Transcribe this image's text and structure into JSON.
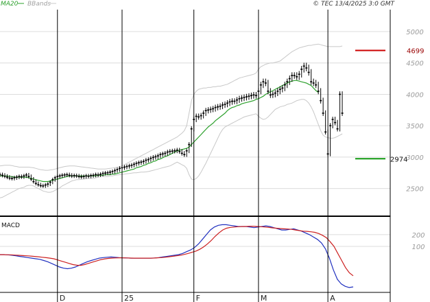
{
  "header": {
    "ma_label": "MA20",
    "bb_label": "BBands",
    "copyright": "© TEC 13/4/2025 3:0 GMT"
  },
  "colors": {
    "background": "#ffffff",
    "grid": "#dcdcdc",
    "axis_line": "#000000",
    "candles": "#000000",
    "ma20": "#2ca02c",
    "bbands": "#c8c8c8",
    "macd": "#1f2fbf",
    "signal": "#cc1f1f",
    "resistance": "#cc0000",
    "support": "#119911"
  },
  "chart_data": [
    {
      "type": "candlestick",
      "title": "",
      "y_ticks": [
        2500,
        3000,
        3500,
        4000,
        4500,
        5000
      ],
      "y_tick_labels": [
        "2500",
        "3000",
        "3500",
        "4000",
        "4500",
        "5000"
      ],
      "ylim": [
        2080,
        5350
      ],
      "x_count": 150,
      "month_labels": [
        {
          "label": "D",
          "index": 24
        },
        {
          "label": "25",
          "index": 51
        },
        {
          "label": "F",
          "index": 81
        },
        {
          "label": "M",
          "index": 108
        },
        {
          "label": "A",
          "index": 137
        }
      ],
      "close": [
        2720,
        2710,
        2695,
        2680,
        2665,
        2660,
        2670,
        2680,
        2690,
        2685,
        2700,
        2715,
        2690,
        2650,
        2610,
        2580,
        2560,
        2545,
        2540,
        2555,
        2570,
        2600,
        2640,
        2670,
        2690,
        2700,
        2710,
        2715,
        2720,
        2710,
        2700,
        2705,
        2700,
        2690,
        2685,
        2690,
        2700,
        2695,
        2705,
        2710,
        2720,
        2715,
        2725,
        2740,
        2745,
        2750,
        2760,
        2770,
        2785,
        2800,
        2820,
        2830,
        2840,
        2850,
        2860,
        2870,
        2885,
        2900,
        2910,
        2920,
        2930,
        2950,
        2960,
        2980,
        2995,
        3005,
        3020,
        3040,
        3050,
        3060,
        3080,
        3090,
        3095,
        3100,
        3110,
        3090,
        3060,
        3040,
        3100,
        3200,
        3450,
        3600,
        3650,
        3640,
        3660,
        3700,
        3740,
        3750,
        3760,
        3770,
        3790,
        3800,
        3810,
        3830,
        3840,
        3860,
        3880,
        3890,
        3890,
        3910,
        3930,
        3940,
        3950,
        3960,
        3970,
        3980,
        3990,
        3980,
        4050,
        4150,
        4200,
        4180,
        4050,
        3990,
        4000,
        4020,
        4050,
        4080,
        4100,
        4150,
        4200,
        4250,
        4300,
        4300,
        4280,
        4320,
        4400,
        4450,
        4420,
        4350,
        4200,
        4180,
        4150,
        4050,
        3900,
        3700,
        3400,
        3050,
        3500,
        3600,
        3550,
        3450,
        4000,
        3700
      ],
      "series": [
        {
          "name": "MA20",
          "values": [
            2700,
            2700,
            2700,
            2700,
            2690,
            2690,
            2680,
            2680,
            2680,
            2680,
            2680,
            2680,
            2670,
            2660,
            2650,
            2640,
            2630,
            2620,
            2610,
            2610,
            2610,
            2620,
            2630,
            2640,
            2650,
            2660,
            2670,
            2680,
            2690,
            2700,
            2700,
            2700,
            2700,
            2700,
            2700,
            2700,
            2700,
            2700,
            2700,
            2700,
            2700,
            2710,
            2710,
            2710,
            2720,
            2720,
            2720,
            2730,
            2730,
            2740,
            2750,
            2760,
            2770,
            2780,
            2790,
            2800,
            2810,
            2830,
            2840,
            2850,
            2870,
            2880,
            2900,
            2910,
            2930,
            2940,
            2960,
            2970,
            2990,
            3010,
            3020,
            3040,
            3060,
            3080,
            3100,
            3110,
            3120,
            3130,
            3140,
            3160,
            3200,
            3240,
            3280,
            3320,
            3360,
            3400,
            3440,
            3480,
            3510,
            3540,
            3580,
            3610,
            3640,
            3670,
            3700,
            3740,
            3770,
            3790,
            3800,
            3820,
            3830,
            3850,
            3860,
            3870,
            3880,
            3890,
            3900,
            3920,
            3930,
            3950,
            3970,
            4000,
            4020,
            4040,
            4060,
            4080,
            4100,
            4120,
            4140,
            4160,
            4180,
            4200,
            4210,
            4220,
            4220,
            4210,
            4200,
            4190,
            4180,
            4160,
            4140,
            4100,
            4060,
            4030
          ]
        },
        {
          "name": "BBands upper",
          "values": [
            2860,
            2865,
            2870,
            2870,
            2870,
            2865,
            2855,
            2850,
            2840,
            2840,
            2840,
            2840,
            2840,
            2835,
            2830,
            2820,
            2810,
            2800,
            2795,
            2790,
            2790,
            2795,
            2800,
            2810,
            2820,
            2830,
            2840,
            2850,
            2855,
            2860,
            2860,
            2860,
            2855,
            2850,
            2845,
            2840,
            2835,
            2830,
            2825,
            2820,
            2815,
            2810,
            2810,
            2810,
            2810,
            2815,
            2820,
            2825,
            2830,
            2840,
            2850,
            2860,
            2880,
            2900,
            2920,
            2940,
            2960,
            2980,
            3000,
            3020,
            3040,
            3060,
            3080,
            3100,
            3120,
            3140,
            3160,
            3180,
            3200,
            3220,
            3240,
            3260,
            3280,
            3300,
            3320,
            3350,
            3380,
            3420,
            3500,
            3700,
            3900,
            4000,
            4050,
            4080,
            4090,
            4100,
            4100,
            4110,
            4110,
            4120,
            4120,
            4130,
            4130,
            4140,
            4150,
            4160,
            4180,
            4200,
            4220,
            4240,
            4260,
            4270,
            4280,
            4290,
            4300,
            4310,
            4320,
            4340,
            4400,
            4440,
            4460,
            4480,
            4490,
            4500,
            4500,
            4510,
            4520,
            4530,
            4560,
            4590,
            4620,
            4650,
            4680,
            4700,
            4720,
            4740,
            4750,
            4760,
            4770,
            4780,
            4780,
            4790,
            4795,
            4800,
            4790,
            4780,
            4770,
            4760,
            4760,
            4760,
            4760,
            4760,
            4760,
            4770
          ]
        },
        {
          "name": "BBands lower",
          "values": [
            2350,
            2360,
            2380,
            2400,
            2420,
            2440,
            2460,
            2480,
            2500,
            2510,
            2520,
            2540,
            2550,
            2550,
            2540,
            2520,
            2500,
            2480,
            2460,
            2450,
            2440,
            2440,
            2450,
            2470,
            2490,
            2510,
            2540,
            2560,
            2580,
            2600,
            2620,
            2630,
            2640,
            2640,
            2645,
            2650,
            2655,
            2660,
            2660,
            2660,
            2670,
            2680,
            2690,
            2690,
            2690,
            2690,
            2700,
            2700,
            2710,
            2715,
            2720,
            2725,
            2730,
            2735,
            2740,
            2745,
            2750,
            2750,
            2755,
            2760,
            2760,
            2765,
            2770,
            2780,
            2790,
            2800,
            2810,
            2820,
            2830,
            2840,
            2850,
            2860,
            2880,
            2900,
            2920,
            2900,
            2880,
            2860,
            2820,
            2720,
            2650,
            2640,
            2660,
            2700,
            2760,
            2830,
            2900,
            2980,
            3060,
            3140,
            3220,
            3300,
            3380,
            3440,
            3480,
            3500,
            3520,
            3540,
            3560,
            3580,
            3600,
            3620,
            3640,
            3650,
            3660,
            3670,
            3680,
            3690,
            3650,
            3620,
            3600,
            3610,
            3640,
            3680,
            3720,
            3760,
            3780,
            3800,
            3810,
            3820,
            3840,
            3850,
            3860,
            3880,
            3900,
            3910,
            3920,
            3920,
            3900,
            3860,
            3800,
            3720,
            3620,
            3520,
            3420,
            3350,
            3320,
            3310,
            3300,
            3300,
            3310,
            3330,
            3350,
            3370
          ]
        }
      ],
      "levels": [
        {
          "name": "resistance",
          "value": 4699,
          "label": "4699"
        },
        {
          "name": "support",
          "value": 2974,
          "label": "2974"
        }
      ]
    },
    {
      "type": "line",
      "title": "MACD",
      "y_ticks": [
        100,
        200
      ],
      "y_tick_labels": [
        "100",
        "200"
      ],
      "ylim": [
        -280,
        340
      ],
      "x_count": 150,
      "series": [
        {
          "name": "MACD",
          "values": [
            30,
            30,
            28,
            25,
            20,
            15,
            10,
            5,
            0,
            -5,
            -10,
            -20,
            -30,
            -45,
            -60,
            -75,
            -85,
            -90,
            -85,
            -75,
            -60,
            -45,
            -30,
            -20,
            -10,
            0,
            5,
            8,
            10,
            8,
            5,
            3,
            2,
            0,
            0,
            0,
            0,
            0,
            0,
            2,
            5,
            10,
            15,
            20,
            25,
            30,
            40,
            55,
            70,
            90,
            120,
            160,
            200,
            240,
            265,
            280,
            285,
            285,
            280,
            275,
            270,
            270,
            270,
            265,
            260,
            265,
            270,
            275,
            270,
            260,
            250,
            240,
            240,
            245,
            250,
            240,
            230,
            215,
            200,
            180,
            160,
            130,
            80,
            0,
            -100,
            -180,
            -220,
            -240,
            -250,
            -245
          ]
        },
        {
          "name": "Signal",
          "values": [
            30,
            30,
            29,
            28,
            26,
            24,
            22,
            20,
            18,
            15,
            12,
            8,
            4,
            0,
            -5,
            -15,
            -25,
            -35,
            -45,
            -55,
            -60,
            -62,
            -55,
            -45,
            -35,
            -25,
            -15,
            -8,
            -3,
            0,
            2,
            3,
            3,
            2,
            1,
            0,
            0,
            0,
            0,
            0,
            1,
            3,
            5,
            8,
            12,
            16,
            20,
            25,
            32,
            40,
            50,
            60,
            75,
            95,
            120,
            150,
            185,
            215,
            240,
            255,
            262,
            265,
            268,
            270,
            270,
            272,
            272,
            270,
            268,
            265,
            262,
            258,
            255,
            252,
            250,
            248,
            245,
            240,
            235,
            230,
            228,
            225,
            220,
            210,
            195,
            175,
            140,
            100,
            40,
            -20,
            -80,
            -125,
            -150
          ]
        }
      ]
    }
  ]
}
